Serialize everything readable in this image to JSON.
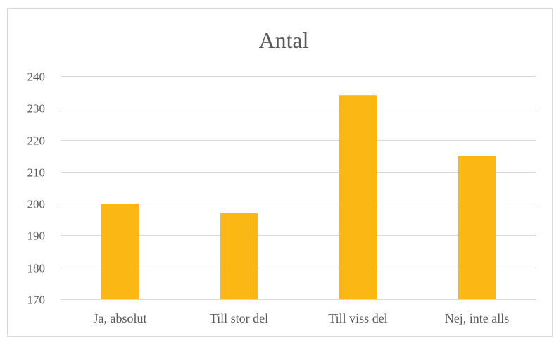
{
  "chart_data": {
    "type": "bar",
    "title": "Antal",
    "xlabel": "",
    "ylabel": "",
    "categories": [
      "Ja, absolut",
      "Till stor del",
      "Till viss del",
      "Nej, inte alls"
    ],
    "values": [
      200,
      197,
      234,
      215
    ],
    "ylim": [
      170,
      240
    ],
    "yticks": [
      170,
      180,
      190,
      200,
      210,
      220,
      230,
      240
    ],
    "grid": true,
    "legend": "none",
    "bar_color": "#FBB714",
    "grid_color": "#d9d9d9"
  }
}
